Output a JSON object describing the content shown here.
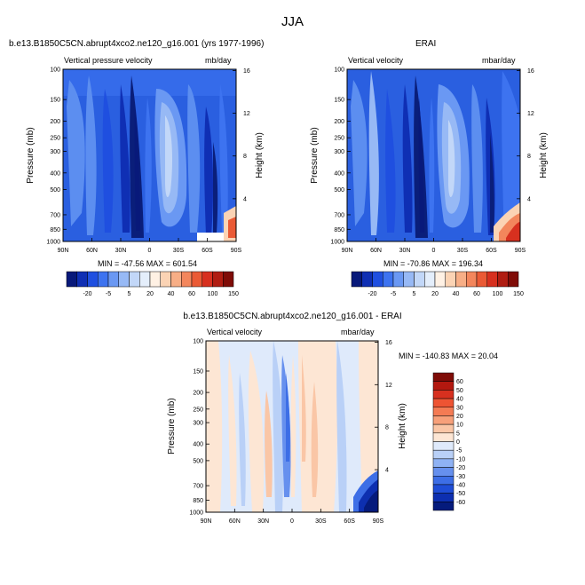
{
  "figure": {
    "title": "JJA"
  },
  "colors": {
    "dark_blue": "#0a1e7a",
    "mid_blue": "#2a5fe0",
    "light_blue": "#5c8ef0",
    "pale_blue": "#a9c6f5",
    "white": "#ffffff",
    "peach": "#fbe3cf",
    "red": "#d7301f"
  },
  "chart_data": [
    {
      "type": "heatmap",
      "panel": "model",
      "title": "b.e13.B1850C5CN.abrupt4xco2.ne120_g16.001 (yrs 1977-1996)",
      "left_label": "Vertical pressure velocity",
      "right_label": "mb/day",
      "xlabel": "",
      "ylabel": "Pressure (mb)",
      "y2label": "Height (km)",
      "x_ticks": [
        "90N",
        "60N",
        "30N",
        "0",
        "30S",
        "60S",
        "90S"
      ],
      "y_ticks": [
        "100",
        "150",
        "200",
        "250",
        "300",
        "400",
        "500",
        "700",
        "850",
        "1000"
      ],
      "y_tick_values": [
        100,
        150,
        200,
        250,
        300,
        400,
        500,
        700,
        850,
        1000
      ],
      "y2_ticks": [
        "16",
        "12",
        "8",
        "4"
      ],
      "xlim": [
        90,
        -90
      ],
      "ylim": [
        1000,
        100
      ],
      "stats": "MIN = -47.56   MAX = 601.54"
    },
    {
      "type": "heatmap",
      "panel": "obs",
      "title": "ERAI",
      "left_label": "Vertical velocity",
      "right_label": "mbar/day",
      "xlabel": "",
      "ylabel": "Pressure (mb)",
      "y2label": "Height (km)",
      "x_ticks": [
        "90N",
        "60N",
        "30N",
        "0",
        "30S",
        "60S",
        "90S"
      ],
      "y_ticks": [
        "100",
        "150",
        "200",
        "250",
        "300",
        "400",
        "500",
        "700",
        "850",
        "1000"
      ],
      "y_tick_values": [
        100,
        150,
        200,
        250,
        300,
        400,
        500,
        700,
        850,
        1000
      ],
      "y2_ticks": [
        "16",
        "12",
        "8",
        "4"
      ],
      "xlim": [
        90,
        -90
      ],
      "ylim": [
        1000,
        100
      ],
      "stats": "MIN = -70.86   MAX = 196.34"
    },
    {
      "type": "heatmap",
      "panel": "difference",
      "title": "b.e13.B1850C5CN.abrupt4xco2.ne120_g16.001 - ERAI",
      "left_label": "Vertical velocity",
      "right_label": "mbar/day",
      "xlabel": "",
      "ylabel": "Pressure (mb)",
      "y2label": "Height (km)",
      "x_ticks": [
        "90N",
        "60N",
        "30N",
        "0",
        "30S",
        "60S",
        "90S"
      ],
      "y_ticks": [
        "100",
        "150",
        "200",
        "250",
        "300",
        "400",
        "500",
        "700",
        "850",
        "1000"
      ],
      "y_tick_values": [
        100,
        150,
        200,
        250,
        300,
        400,
        500,
        700,
        850,
        1000
      ],
      "y2_ticks": [
        "16",
        "12",
        "8",
        "4"
      ],
      "xlim": [
        90,
        -90
      ],
      "ylim": [
        1000,
        100
      ],
      "stats": "MIN = -140.83   MAX =  20.04"
    }
  ],
  "colorbar_top": {
    "labels": [
      "-20",
      "-5",
      "5",
      "20",
      "40",
      "60",
      "100",
      "150"
    ],
    "colors": [
      "#08197a",
      "#0f2fb4",
      "#1f4fe0",
      "#3d73f0",
      "#6a98f3",
      "#97b9f5",
      "#c2d7f8",
      "#e4eefb",
      "#fff1e4",
      "#fbd3b4",
      "#f7ae86",
      "#f3865c",
      "#ea5a35",
      "#d7301f",
      "#b01d12",
      "#7f0c07"
    ]
  },
  "colorbar_diff": {
    "labels": [
      "60",
      "50",
      "40",
      "30",
      "20",
      "10",
      "5",
      "0",
      "-5",
      "-10",
      "-20",
      "-30",
      "-40",
      "-50",
      "-60"
    ],
    "colors": [
      "#7f0c07",
      "#b3180f",
      "#d7301f",
      "#ee5433",
      "#f47b54",
      "#f7a07a",
      "#fac6a6",
      "#fde6d4",
      "#dfeafb",
      "#b9d0f7",
      "#8fb2f4",
      "#6690ee",
      "#3d6ee6",
      "#1f4dd6",
      "#0d2fb0",
      "#051b7c"
    ]
  }
}
